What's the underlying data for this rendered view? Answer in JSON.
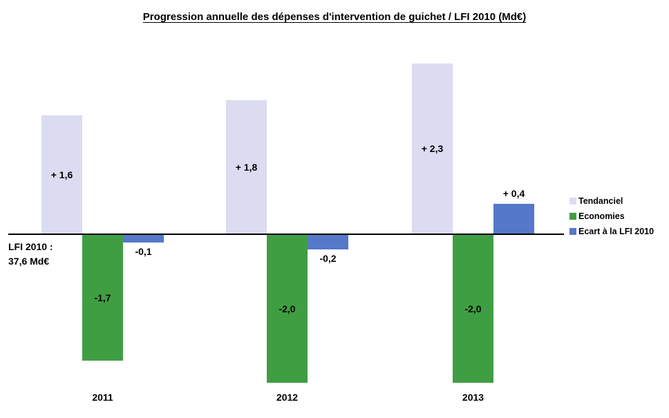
{
  "title": "Progression annuelle des dépenses d'intervention de guichet / LFI 2010 (Md€)",
  "annotation": {
    "line1": "LFI 2010 :",
    "line2": "37,6 Md€"
  },
  "chart_data": {
    "type": "bar",
    "title": "Progression annuelle des dépenses d'intervention de guichet / LFI 2010 (Md€)",
    "categories": [
      "2011",
      "2012",
      "2013"
    ],
    "series": [
      {
        "name": "Tendanciel",
        "color": "#dbdbf2",
        "values": [
          1.6,
          1.8,
          2.3
        ],
        "labels": [
          "+ 1,6",
          "+ 1,8",
          "+ 2,3"
        ],
        "label_position": "inside"
      },
      {
        "name": "Economies",
        "color": "#3f9e42",
        "values": [
          -1.7,
          -2.0,
          -2.0
        ],
        "labels": [
          "-1,7",
          "-2,0",
          "-2,0"
        ],
        "label_position": "inside"
      },
      {
        "name": "Ecart à la LFI 2010",
        "color": "#5578c8",
        "values": [
          -0.1,
          -0.2,
          0.4
        ],
        "labels": [
          "-0,1",
          "-0,2",
          "+ 0,4"
        ],
        "label_position": "outside"
      }
    ],
    "legend": [
      "Tendanciel",
      "Economies",
      "Ecart à la LFI 2010"
    ],
    "legend_position": "right",
    "baseline_note": "LFI 2010 : 37,6 Md€",
    "unit": "Md€",
    "xlabel": "",
    "ylabel": "",
    "ylim": [
      -2.2,
      2.5
    ],
    "grid": false
  }
}
